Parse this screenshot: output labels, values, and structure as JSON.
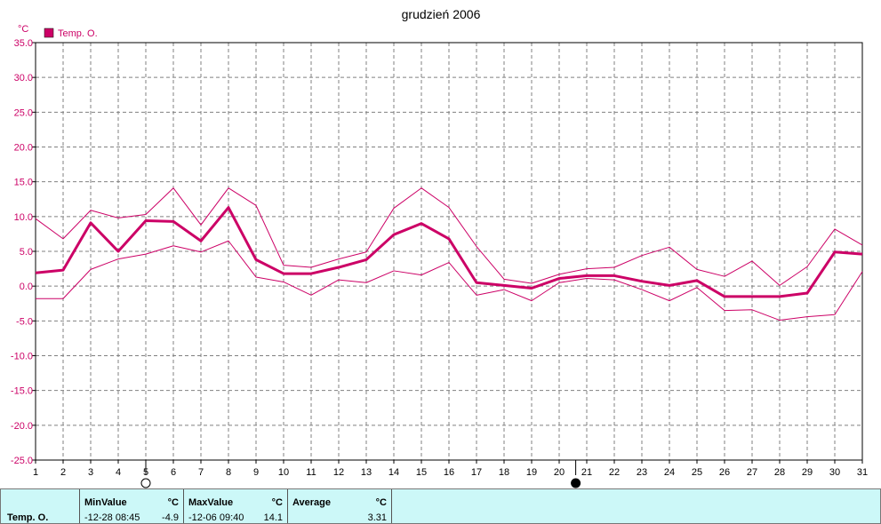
{
  "chart_data": {
    "type": "line",
    "title": "grudzień 2006",
    "unit": "°C",
    "legend": [
      "Temp. O."
    ],
    "legend_color": "#cc0066",
    "ylim": [
      -25,
      35
    ],
    "y_ticks": [
      "35.0",
      "30.0",
      "25.0",
      "20.0",
      "15.0",
      "10.0",
      "5.0",
      "0.0",
      "-5.0",
      "-10.0",
      "-15.0",
      "-20.0",
      "-25.0"
    ],
    "x": [
      1,
      2,
      3,
      4,
      5,
      6,
      7,
      8,
      9,
      10,
      11,
      12,
      13,
      14,
      15,
      16,
      17,
      18,
      19,
      20,
      21,
      22,
      23,
      24,
      25,
      26,
      27,
      28,
      29,
      30,
      31
    ],
    "series": [
      {
        "role": "max",
        "values": [
          9.7,
          6.8,
          10.9,
          9.8,
          10.3,
          14.1,
          8.8,
          14.1,
          11.6,
          3.0,
          2.7,
          3.9,
          4.9,
          11.2,
          14.1,
          11.3,
          5.7,
          1.0,
          0.4,
          1.7,
          2.5,
          2.7,
          4.4,
          5.6,
          2.4,
          1.4,
          3.6,
          0.1,
          2.8,
          8.2,
          5.9
        ]
      },
      {
        "role": "avg",
        "values": [
          1.9,
          2.3,
          9.1,
          5.0,
          9.4,
          9.3,
          6.5,
          11.3,
          3.8,
          1.8,
          1.8,
          2.7,
          3.8,
          7.4,
          9.0,
          6.8,
          0.5,
          0.1,
          -0.3,
          1.1,
          1.5,
          1.5,
          0.7,
          0.1,
          0.8,
          -1.5,
          -1.5,
          -1.5,
          -1.0,
          4.9,
          4.6
        ]
      },
      {
        "role": "min",
        "values": [
          -1.8,
          -1.8,
          2.4,
          3.9,
          4.6,
          5.8,
          4.9,
          6.5,
          1.3,
          0.6,
          -1.3,
          0.9,
          0.5,
          2.2,
          1.6,
          3.4,
          -1.3,
          -0.5,
          -2.1,
          0.5,
          1.1,
          0.9,
          -0.5,
          -2.1,
          -0.2,
          -3.5,
          -3.4,
          -4.9,
          -4.4,
          -4.1,
          2.1
        ]
      }
    ],
    "moon_phases": [
      {
        "day": 5,
        "phase": "full-moon-icon"
      },
      {
        "day": 20.6,
        "phase": "new-moon-icon"
      }
    ],
    "grid": true
  },
  "stats": {
    "row_label": "Temp. O.",
    "min": {
      "header": "MinValue",
      "unit": "°C",
      "date_time": "-12-28  08:45",
      "value": "-4.9"
    },
    "max": {
      "header": "MaxValue",
      "unit": "°C",
      "date_time": "-12-06  09:40",
      "value": "14.1"
    },
    "avg": {
      "header": "Average",
      "unit": "°C",
      "value": "3.31"
    }
  }
}
